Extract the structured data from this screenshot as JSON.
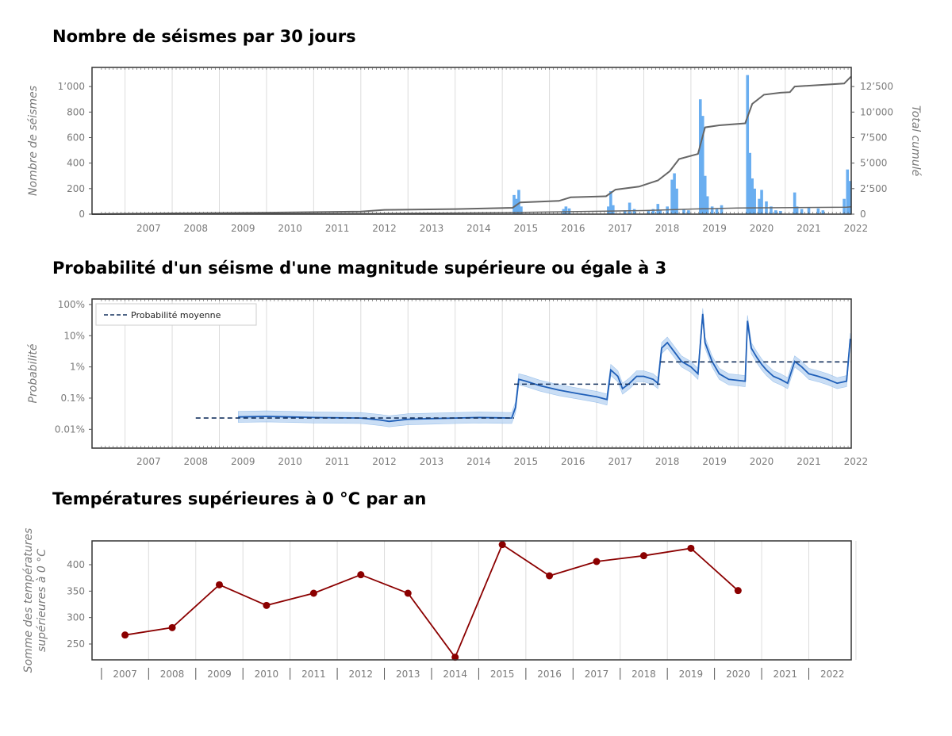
{
  "titles": {
    "chart1": "Nombre de séismes par 30 jours",
    "chart2": "Probabilité d'un séisme d'une magnitude supérieure ou égale à 3",
    "chart3": "Températures supérieures à 0 °C par an"
  },
  "colors": {
    "bars": "#6aaef0",
    "cumulative": "#666666",
    "probability": "#1f5fb8",
    "probability_band": "#b9d4f2",
    "mean": "#15325e",
    "temperature": "#8b0000"
  },
  "chart_data": [
    {
      "type": "bar",
      "title": "Nombre de séismes par 30 jours",
      "ylabel": "Nombre de séismes",
      "y2label": "Total cumulé",
      "ylim": [
        0,
        1150
      ],
      "y2lim": [
        0,
        14375
      ],
      "yticks": [
        0,
        200,
        400,
        600,
        800,
        1000
      ],
      "ytick_labels": [
        "0",
        "200",
        "400",
        "600",
        "800",
        "1’000"
      ],
      "y2ticks": [
        0,
        2500,
        5000,
        7500,
        10000,
        12500
      ],
      "y2tick_labels": [
        "0",
        "2’500",
        "5’000",
        "7’500",
        "10’000",
        "12’500"
      ],
      "xlim": [
        2006.3,
        2022.4
      ],
      "year_labels": [
        "2007",
        "2008",
        "2009",
        "2010",
        "2011",
        "2012",
        "2013",
        "2014",
        "2015",
        "2016",
        "2017",
        "2018",
        "2019",
        "2020",
        "2021",
        "2022"
      ],
      "bars": [
        {
          "x": 2015.25,
          "v": 150
        },
        {
          "x": 2015.3,
          "v": 120
        },
        {
          "x": 2015.35,
          "v": 190
        },
        {
          "x": 2015.4,
          "v": 60
        },
        {
          "x": 2016.3,
          "v": 40
        },
        {
          "x": 2016.35,
          "v": 60
        },
        {
          "x": 2016.42,
          "v": 45
        },
        {
          "x": 2017.25,
          "v": 60
        },
        {
          "x": 2017.3,
          "v": 180
        },
        {
          "x": 2017.35,
          "v": 70
        },
        {
          "x": 2017.6,
          "v": 30
        },
        {
          "x": 2017.7,
          "v": 90
        },
        {
          "x": 2017.8,
          "v": 40
        },
        {
          "x": 2018.1,
          "v": 30
        },
        {
          "x": 2018.2,
          "v": 40
        },
        {
          "x": 2018.3,
          "v": 80
        },
        {
          "x": 2018.35,
          "v": 30
        },
        {
          "x": 2018.5,
          "v": 60
        },
        {
          "x": 2018.6,
          "v": 270
        },
        {
          "x": 2018.65,
          "v": 320
        },
        {
          "x": 2018.7,
          "v": 200
        },
        {
          "x": 2018.85,
          "v": 40
        },
        {
          "x": 2018.95,
          "v": 30
        },
        {
          "x": 2019.2,
          "v": 900
        },
        {
          "x": 2019.25,
          "v": 770
        },
        {
          "x": 2019.3,
          "v": 300
        },
        {
          "x": 2019.35,
          "v": 140
        },
        {
          "x": 2019.45,
          "v": 60
        },
        {
          "x": 2019.55,
          "v": 40
        },
        {
          "x": 2019.65,
          "v": 70
        },
        {
          "x": 2020.2,
          "v": 1090
        },
        {
          "x": 2020.25,
          "v": 480
        },
        {
          "x": 2020.3,
          "v": 280
        },
        {
          "x": 2020.35,
          "v": 200
        },
        {
          "x": 2020.45,
          "v": 120
        },
        {
          "x": 2020.5,
          "v": 190
        },
        {
          "x": 2020.6,
          "v": 100
        },
        {
          "x": 2020.7,
          "v": 60
        },
        {
          "x": 2020.8,
          "v": 30
        },
        {
          "x": 2020.9,
          "v": 25
        },
        {
          "x": 2021.2,
          "v": 170
        },
        {
          "x": 2021.25,
          "v": 60
        },
        {
          "x": 2021.35,
          "v": 40
        },
        {
          "x": 2021.5,
          "v": 50
        },
        {
          "x": 2021.7,
          "v": 45
        },
        {
          "x": 2021.8,
          "v": 30
        },
        {
          "x": 2022.25,
          "v": 120
        },
        {
          "x": 2022.32,
          "v": 350
        },
        {
          "x": 2022.38,
          "v": 260
        }
      ],
      "cumulative": [
        [
          2006.3,
          0
        ],
        [
          2008.0,
          80
        ],
        [
          2010.0,
          150
        ],
        [
          2012.0,
          250
        ],
        [
          2012.5,
          420
        ],
        [
          2014.0,
          500
        ],
        [
          2015.22,
          620
        ],
        [
          2015.38,
          1150
        ],
        [
          2016.2,
          1300
        ],
        [
          2016.45,
          1650
        ],
        [
          2017.2,
          1750
        ],
        [
          2017.4,
          2400
        ],
        [
          2017.9,
          2700
        ],
        [
          2018.3,
          3300
        ],
        [
          2018.55,
          4200
        ],
        [
          2018.75,
          5400
        ],
        [
          2019.15,
          5900
        ],
        [
          2019.3,
          8500
        ],
        [
          2019.6,
          8700
        ],
        [
          2020.15,
          8900
        ],
        [
          2020.3,
          10800
        ],
        [
          2020.55,
          11700
        ],
        [
          2020.9,
          11900
        ],
        [
          2021.1,
          11950
        ],
        [
          2021.2,
          12500
        ],
        [
          2022.25,
          12800
        ],
        [
          2022.4,
          13500
        ]
      ],
      "cumulative_low": [
        [
          2006.3,
          0
        ],
        [
          2012.0,
          50
        ],
        [
          2015.0,
          150
        ],
        [
          2018.0,
          350
        ],
        [
          2019.0,
          500
        ],
        [
          2020.0,
          600
        ],
        [
          2022.3,
          680
        ],
        [
          2022.4,
          720
        ]
      ]
    },
    {
      "type": "line",
      "title": "Probabilité d'un séisme d'une magnitude supérieure ou égale à 3",
      "ylabel": "Probabilité",
      "yscale": "log",
      "ylim": [
        0.0025,
        150
      ],
      "yticks": [
        0.01,
        0.1,
        1,
        10,
        100
      ],
      "ytick_labels": [
        "0.01%",
        "0.1%",
        "1%",
        "10%",
        "100%"
      ],
      "legend": {
        "label": "Probabilité moyenne",
        "placement": "top-left"
      },
      "probability_percent": [
        [
          2009.4,
          0.025
        ],
        [
          2010.0,
          0.026
        ],
        [
          2011.0,
          0.024
        ],
        [
          2012.0,
          0.023
        ],
        [
          2012.4,
          0.02
        ],
        [
          2012.6,
          0.018
        ],
        [
          2013.0,
          0.021
        ],
        [
          2013.5,
          0.022
        ],
        [
          2014.0,
          0.023
        ],
        [
          2014.5,
          0.024
        ],
        [
          2015.2,
          0.023
        ],
        [
          2015.28,
          0.05
        ],
        [
          2015.35,
          0.4
        ],
        [
          2015.5,
          0.35
        ],
        [
          2015.8,
          0.25
        ],
        [
          2016.2,
          0.18
        ],
        [
          2016.6,
          0.14
        ],
        [
          2017.0,
          0.11
        ],
        [
          2017.22,
          0.09
        ],
        [
          2017.3,
          0.8
        ],
        [
          2017.45,
          0.5
        ],
        [
          2017.55,
          0.2
        ],
        [
          2017.7,
          0.3
        ],
        [
          2017.85,
          0.5
        ],
        [
          2018.0,
          0.5
        ],
        [
          2018.2,
          0.4
        ],
        [
          2018.3,
          0.3
        ],
        [
          2018.38,
          4.0
        ],
        [
          2018.5,
          6.0
        ],
        [
          2018.65,
          3.0
        ],
        [
          2018.8,
          1.5
        ],
        [
          2019.0,
          1.0
        ],
        [
          2019.15,
          0.6
        ],
        [
          2019.25,
          50
        ],
        [
          2019.3,
          6.0
        ],
        [
          2019.45,
          1.5
        ],
        [
          2019.6,
          0.6
        ],
        [
          2019.8,
          0.4
        ],
        [
          2020.15,
          0.35
        ],
        [
          2020.2,
          30
        ],
        [
          2020.28,
          4.0
        ],
        [
          2020.4,
          2.0
        ],
        [
          2020.5,
          1.2
        ],
        [
          2020.6,
          0.8
        ],
        [
          2020.75,
          0.5
        ],
        [
          2020.9,
          0.4
        ],
        [
          2021.05,
          0.3
        ],
        [
          2021.2,
          1.5
        ],
        [
          2021.35,
          1.0
        ],
        [
          2021.5,
          0.6
        ],
        [
          2021.7,
          0.5
        ],
        [
          2021.9,
          0.4
        ],
        [
          2022.1,
          0.3
        ],
        [
          2022.3,
          0.35
        ],
        [
          2022.38,
          8.0
        ]
      ],
      "mean_segments": [
        {
          "x0": 2008.5,
          "x1": 2015.25,
          "y": 0.023
        },
        {
          "x0": 2015.25,
          "x1": 2018.35,
          "y": 0.28
        },
        {
          "x0": 2018.35,
          "x1": 2022.4,
          "y": 1.45
        }
      ],
      "xlim": [
        2006.3,
        2022.4
      ],
      "year_labels": [
        "2007",
        "2008",
        "2009",
        "2010",
        "2011",
        "2012",
        "2013",
        "2014",
        "2015",
        "2016",
        "2017",
        "2018",
        "2019",
        "2020",
        "2021",
        "2022"
      ]
    },
    {
      "type": "line",
      "title": "Températures supérieures à 0 °C par an",
      "ylabel": "Somme des températures supérieures à 0 °C",
      "ylim": [
        220,
        445
      ],
      "yticks": [
        250,
        300,
        350,
        400
      ],
      "ytick_labels": [
        "250",
        "300",
        "350",
        "400"
      ],
      "x": [
        2007,
        2008,
        2009,
        2010,
        2011,
        2012,
        2013,
        2014,
        2015,
        2016,
        2017,
        2018,
        2019,
        2020
      ],
      "y": [
        267,
        281,
        362,
        323,
        346,
        381,
        346,
        225,
        438,
        379,
        406,
        417,
        431,
        351
      ],
      "year_labels": [
        "2007",
        "2008",
        "2009",
        "2010",
        "2011",
        "2012",
        "2013",
        "2014",
        "2015",
        "2016",
        "2017",
        "2018",
        "2019",
        "2020",
        "2021",
        "2022"
      ]
    }
  ]
}
